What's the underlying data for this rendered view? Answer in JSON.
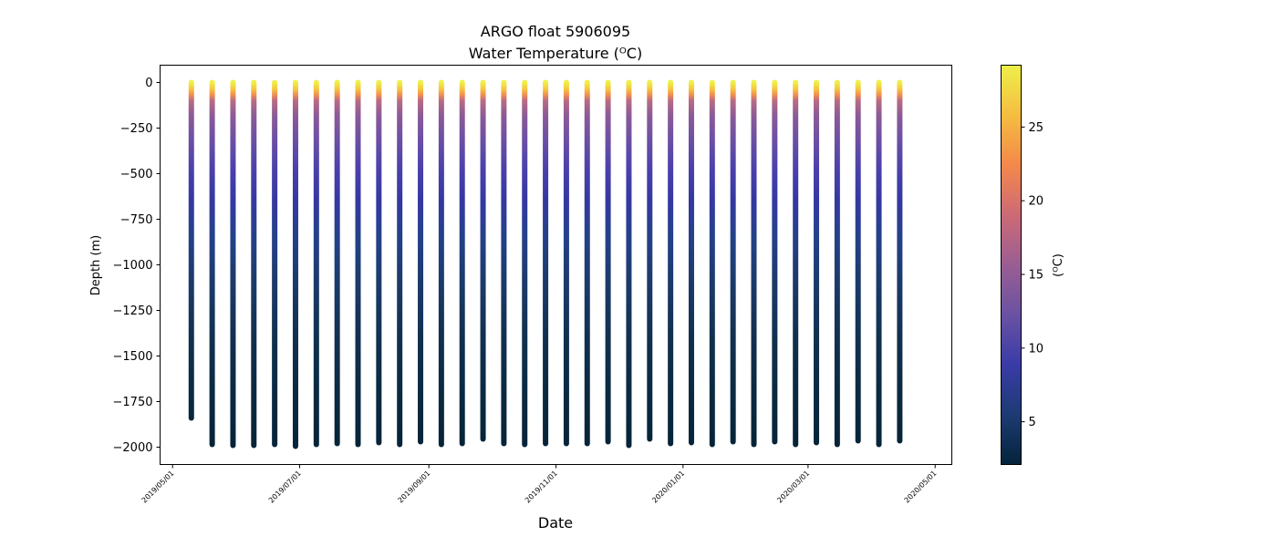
{
  "chart_data": {
    "type": "scatter",
    "title": "ARGO float 5906095",
    "subtitle": "Water Temperature (ᴼC)",
    "xlabel": "Date",
    "ylabel": "Depth (m)",
    "ylim": [
      -2095,
      95
    ],
    "xlim": [
      "2019-04-25",
      "2020-05-09"
    ],
    "x_ticks": [
      "2019/05/01",
      "2019/07/01",
      "2019/09/01",
      "2019/11/01",
      "2020/01/01",
      "2020/03/01",
      "2020/05/01"
    ],
    "y_ticks": [
      0,
      -250,
      -500,
      -750,
      -1000,
      -1250,
      -1500,
      -1750,
      -2000
    ],
    "colorbar": {
      "label": "(ᴼC)",
      "range": [
        2.1,
        29.2
      ],
      "ticks": [
        5,
        10,
        15,
        20,
        25
      ],
      "colormap": "thermal",
      "colors": [
        "#04233a",
        "#1d3b73",
        "#3a3ba8",
        "#6a52a3",
        "#9a5e92",
        "#cd6a76",
        "#f4884a",
        "#f5bd41",
        "#eef048"
      ]
    },
    "profile_interval_days": 10,
    "profiles": [
      {
        "date": "2019-05-10",
        "max_depth": -1840,
        "mixed_layer_depth": -40
      },
      {
        "date": "2019-05-20",
        "max_depth": -1985,
        "mixed_layer_depth": -40
      },
      {
        "date": "2019-05-30",
        "max_depth": -1990,
        "mixed_layer_depth": -40
      },
      {
        "date": "2019-06-09",
        "max_depth": -1990,
        "mixed_layer_depth": -40
      },
      {
        "date": "2019-06-19",
        "max_depth": -1985,
        "mixed_layer_depth": -45
      },
      {
        "date": "2019-06-29",
        "max_depth": -1995,
        "mixed_layer_depth": -45
      },
      {
        "date": "2019-07-09",
        "max_depth": -1985,
        "mixed_layer_depth": -45
      },
      {
        "date": "2019-07-19",
        "max_depth": -1980,
        "mixed_layer_depth": -50
      },
      {
        "date": "2019-07-29",
        "max_depth": -1985,
        "mixed_layer_depth": -50
      },
      {
        "date": "2019-08-08",
        "max_depth": -1975,
        "mixed_layer_depth": -50
      },
      {
        "date": "2019-08-18",
        "max_depth": -1985,
        "mixed_layer_depth": -45
      },
      {
        "date": "2019-08-28",
        "max_depth": -1970,
        "mixed_layer_depth": -45
      },
      {
        "date": "2019-09-07",
        "max_depth": -1985,
        "mixed_layer_depth": -40
      },
      {
        "date": "2019-09-17",
        "max_depth": -1980,
        "mixed_layer_depth": -40
      },
      {
        "date": "2019-09-27",
        "max_depth": -1955,
        "mixed_layer_depth": -35
      },
      {
        "date": "2019-10-07",
        "max_depth": -1980,
        "mixed_layer_depth": -35
      },
      {
        "date": "2019-10-17",
        "max_depth": -1985,
        "mixed_layer_depth": -30
      },
      {
        "date": "2019-10-27",
        "max_depth": -1980,
        "mixed_layer_depth": -30
      },
      {
        "date": "2019-11-06",
        "max_depth": -1980,
        "mixed_layer_depth": -25
      },
      {
        "date": "2019-11-16",
        "max_depth": -1980,
        "mixed_layer_depth": -20
      },
      {
        "date": "2019-11-26",
        "max_depth": -1970,
        "mixed_layer_depth": -20
      },
      {
        "date": "2019-12-06",
        "max_depth": -1990,
        "mixed_layer_depth": -20
      },
      {
        "date": "2019-12-16",
        "max_depth": -1955,
        "mixed_layer_depth": -30
      },
      {
        "date": "2019-12-26",
        "max_depth": -1980,
        "mixed_layer_depth": -35
      },
      {
        "date": "2020-01-05",
        "max_depth": -1975,
        "mixed_layer_depth": -40
      },
      {
        "date": "2020-01-15",
        "max_depth": -1985,
        "mixed_layer_depth": -45
      },
      {
        "date": "2020-01-25",
        "max_depth": -1970,
        "mixed_layer_depth": -50
      },
      {
        "date": "2020-02-04",
        "max_depth": -1985,
        "mixed_layer_depth": -55
      },
      {
        "date": "2020-02-14",
        "max_depth": -1970,
        "mixed_layer_depth": -55
      },
      {
        "date": "2020-02-24",
        "max_depth": -1985,
        "mixed_layer_depth": -60
      },
      {
        "date": "2020-03-05",
        "max_depth": -1975,
        "mixed_layer_depth": -70
      },
      {
        "date": "2020-03-15",
        "max_depth": -1985,
        "mixed_layer_depth": -80
      },
      {
        "date": "2020-03-25",
        "max_depth": -1965,
        "mixed_layer_depth": -85
      },
      {
        "date": "2020-04-04",
        "max_depth": -1985,
        "mixed_layer_depth": -85
      },
      {
        "date": "2020-04-14",
        "max_depth": -1965,
        "mixed_layer_depth": -90
      }
    ]
  }
}
